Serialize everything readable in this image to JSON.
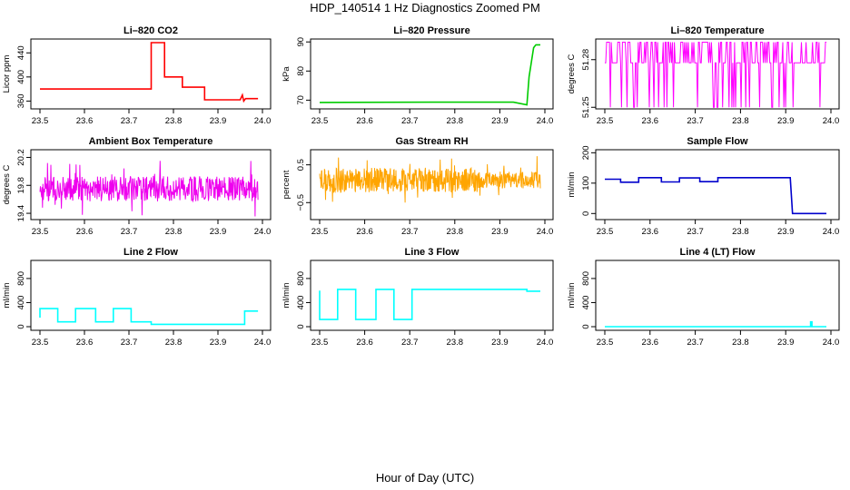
{
  "figure": {
    "title": "HDP_140514  1 Hz Diagnostics Zoomed PM",
    "xlabel": "Hour of Day (UTC)"
  },
  "chart_data": [
    {
      "type": "line",
      "title": "Li–820 CO2",
      "ylabel": "Licor ppm",
      "color": "#ff0000",
      "xlim": [
        23.5,
        24.0
      ],
      "ylim": [
        347,
        463
      ],
      "xticks": [
        "23.5",
        "23.6",
        "23.7",
        "23.8",
        "23.9",
        "24.0"
      ],
      "yticks": [
        360,
        400,
        440
      ],
      "ytick_labels": [
        "360",
        "400",
        "440"
      ],
      "series": [
        {
          "name": "CO2",
          "x": [
            23.5,
            23.75,
            23.75,
            23.78,
            23.78,
            23.82,
            23.82,
            23.87,
            23.87,
            23.95,
            23.955,
            23.958,
            23.962,
            23.965,
            23.99
          ],
          "y": [
            380,
            380,
            457,
            457,
            400,
            400,
            383,
            383,
            362,
            362,
            370,
            360,
            364,
            364,
            364
          ]
        }
      ]
    },
    {
      "type": "line",
      "title": "Li–820 Pressure",
      "ylabel": "kPa",
      "color": "#00cc00",
      "xlim": [
        23.5,
        24.0
      ],
      "ylim": [
        67,
        91
      ],
      "xticks": [
        "23.5",
        "23.6",
        "23.7",
        "23.8",
        "23.9",
        "24.0"
      ],
      "yticks": [
        70,
        80,
        90
      ],
      "ytick_labels": [
        "70",
        "80",
        "90"
      ],
      "series": [
        {
          "name": "Pressure",
          "x": [
            23.5,
            23.75,
            23.93,
            23.96,
            23.965,
            23.975,
            23.98,
            23.99
          ],
          "y": [
            69.2,
            69.3,
            69.3,
            68.4,
            78,
            88,
            89,
            89
          ]
        }
      ]
    },
    {
      "type": "line",
      "title": "Li–820 Temperature",
      "ylabel": "degrees C",
      "color": "#ff00ff",
      "xlim": [
        23.5,
        24.0
      ],
      "ylim": [
        51.249,
        51.293
      ],
      "xticks": [
        "23.5",
        "23.6",
        "23.7",
        "23.8",
        "23.9",
        "24.0"
      ],
      "yticks": [
        51.25,
        51.28
      ],
      "ytick_labels": [
        "51.25",
        "51.28"
      ],
      "series": [
        {
          "name": "Temperature",
          "x": [
            23.5,
            23.99
          ],
          "y": [
            51.28,
            51.28
          ]
        }
      ]
    },
    {
      "type": "line",
      "title": "Ambient Box Temperature",
      "ylabel": "degrees C",
      "color": "#ee00ee",
      "xlim": [
        23.5,
        24.0
      ],
      "ylim": [
        19.31,
        20.31
      ],
      "xticks": [
        "23.5",
        "23.6",
        "23.7",
        "23.8",
        "23.9",
        "24.0"
      ],
      "yticks": [
        19.4,
        19.8,
        20.2
      ],
      "ytick_labels": [
        "19.4",
        "19.8",
        "20.2"
      ],
      "series": [
        {
          "name": "Ambient",
          "x": [
            23.5,
            23.99
          ],
          "y": [
            19.75,
            19.75
          ]
        }
      ]
    },
    {
      "type": "line",
      "title": "Gas Stream RH",
      "ylabel": "percent",
      "color": "#ffa500",
      "xlim": [
        23.5,
        24.0
      ],
      "ylim": [
        -0.95,
        0.9
      ],
      "xticks": [
        "23.5",
        "23.6",
        "23.7",
        "23.8",
        "23.9",
        "24.0"
      ],
      "yticks": [
        -0.5,
        0.5
      ],
      "ytick_labels": [
        "−0.5",
        "0.5"
      ],
      "series": [
        {
          "name": "RH",
          "x": [
            23.5,
            23.99
          ],
          "y": [
            0.1,
            0.1
          ]
        }
      ]
    },
    {
      "type": "line",
      "title": "Sample Flow",
      "ylabel": "ml/min",
      "color": "#0000cc",
      "xlim": [
        23.5,
        24.0
      ],
      "ylim": [
        -20,
        210
      ],
      "xticks": [
        "23.5",
        "23.6",
        "23.7",
        "23.8",
        "23.9",
        "24.0"
      ],
      "yticks": [
        0,
        100,
        200
      ],
      "ytick_labels": [
        "0",
        "100",
        "200"
      ],
      "series": [
        {
          "name": "Flow",
          "x": [
            23.5,
            23.535,
            23.535,
            23.575,
            23.575,
            23.625,
            23.625,
            23.665,
            23.665,
            23.71,
            23.71,
            23.75,
            23.75,
            23.91,
            23.915,
            23.99
          ],
          "y": [
            113,
            113,
            103,
            103,
            118,
            118,
            104,
            104,
            117,
            117,
            105,
            105,
            118,
            118,
            0,
            0
          ]
        }
      ]
    },
    {
      "type": "line",
      "title": "Line 2 Flow",
      "ylabel": "ml/min",
      "color": "#00ffff",
      "xlim": [
        23.5,
        24.0
      ],
      "ylim": [
        -60,
        1100
      ],
      "xticks": [
        "23.5",
        "23.6",
        "23.7",
        "23.8",
        "23.9",
        "24.0"
      ],
      "yticks": [
        0,
        400,
        800
      ],
      "ytick_labels": [
        "0",
        "400",
        "800"
      ],
      "series": [
        {
          "name": "Line 2",
          "x": [
            23.5,
            23.5,
            23.54,
            23.54,
            23.58,
            23.58,
            23.625,
            23.625,
            23.665,
            23.665,
            23.705,
            23.705,
            23.75,
            23.75,
            23.96,
            23.96,
            23.99
          ],
          "y": [
            150,
            300,
            300,
            80,
            80,
            300,
            300,
            80,
            80,
            300,
            300,
            80,
            80,
            40,
            40,
            260,
            260
          ]
        }
      ]
    },
    {
      "type": "line",
      "title": "Line 3 Flow",
      "ylabel": "ml/min",
      "color": "#00ffff",
      "xlim": [
        23.5,
        24.0
      ],
      "ylim": [
        -60,
        1100
      ],
      "xticks": [
        "23.5",
        "23.6",
        "23.7",
        "23.8",
        "23.9",
        "24.0"
      ],
      "yticks": [
        0,
        400,
        800
      ],
      "ytick_labels": [
        "0",
        "400",
        "800"
      ],
      "series": [
        {
          "name": "Line 3",
          "x": [
            23.5,
            23.5,
            23.5,
            23.54,
            23.54,
            23.58,
            23.58,
            23.625,
            23.625,
            23.665,
            23.665,
            23.705,
            23.705,
            23.96,
            23.96,
            23.99
          ],
          "y": [
            600,
            120,
            120,
            120,
            620,
            620,
            120,
            120,
            620,
            620,
            120,
            120,
            620,
            620,
            590,
            590
          ]
        }
      ]
    },
    {
      "type": "line",
      "title": "Line 4 (LT) Flow",
      "ylabel": "ml/min",
      "color": "#00ffff",
      "xlim": [
        23.5,
        24.0
      ],
      "ylim": [
        -60,
        1100
      ],
      "xticks": [
        "23.5",
        "23.6",
        "23.7",
        "23.8",
        "23.9",
        "24.0"
      ],
      "yticks": [
        0,
        400,
        800
      ],
      "ytick_labels": [
        "0",
        "400",
        "800"
      ],
      "series": [
        {
          "name": "Line 4",
          "x": [
            23.5,
            23.955,
            23.955,
            23.958,
            23.958,
            23.99
          ],
          "y": [
            0,
            0,
            80,
            80,
            0,
            0
          ]
        }
      ]
    }
  ]
}
